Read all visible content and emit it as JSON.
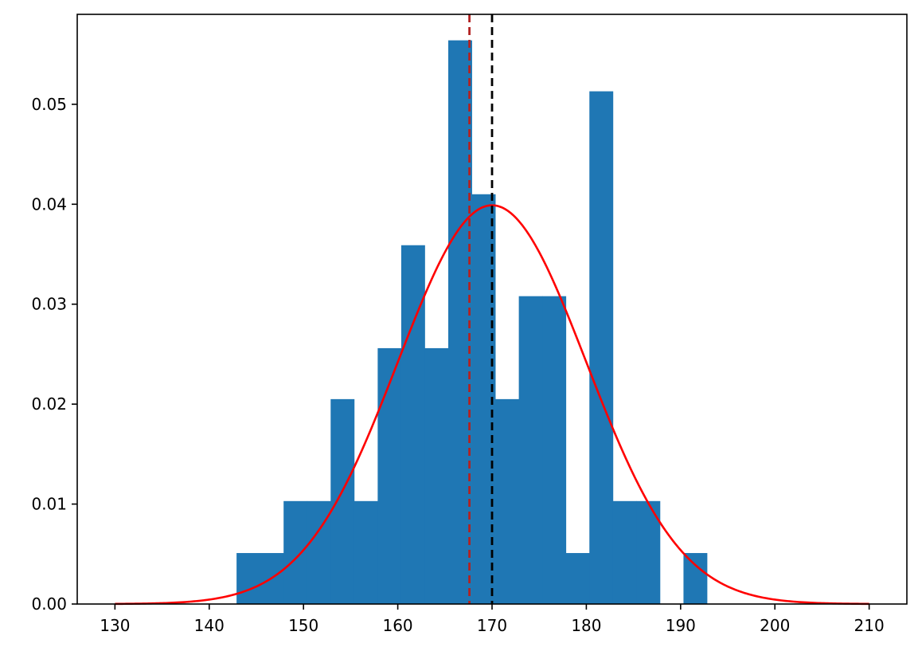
{
  "chart_data": {
    "type": "bar",
    "title": "",
    "xlabel": "",
    "ylabel": "",
    "xlim": [
      126.0,
      214.0
    ],
    "ylim": [
      0.0,
      0.059
    ],
    "xticks": [
      130,
      140,
      150,
      160,
      170,
      180,
      190,
      200,
      210
    ],
    "yticks": [
      0.0,
      0.01,
      0.02,
      0.03,
      0.04,
      0.05
    ],
    "xtick_labels": [
      "130",
      "140",
      "150",
      "160",
      "170",
      "180",
      "190",
      "200",
      "210"
    ],
    "ytick_labels": [
      "0.00",
      "0.01",
      "0.02",
      "0.03",
      "0.04",
      "0.05"
    ],
    "grid": false,
    "legend": "none",
    "histogram": {
      "bin_start": 142.9,
      "bin_width": 2.495,
      "values": [
        0.0051,
        0.0051,
        0.0103,
        0.0103,
        0.0205,
        0.0103,
        0.0256,
        0.0359,
        0.0256,
        0.0564,
        0.041,
        0.0205,
        0.0308,
        0.0308,
        0.0051,
        0.0513,
        0.0103,
        0.0103,
        0.0,
        0.0051
      ],
      "color": "#1f77b4"
    },
    "normal_curve": {
      "mean": 170,
      "sd": 10,
      "x_range": [
        130,
        210
      ],
      "color": "#ff0000"
    },
    "vlines": [
      {
        "x": 167.6,
        "color": "#b22222",
        "style": "dashed"
      },
      {
        "x": 170.0,
        "color": "#000000",
        "style": "dashed"
      }
    ]
  }
}
